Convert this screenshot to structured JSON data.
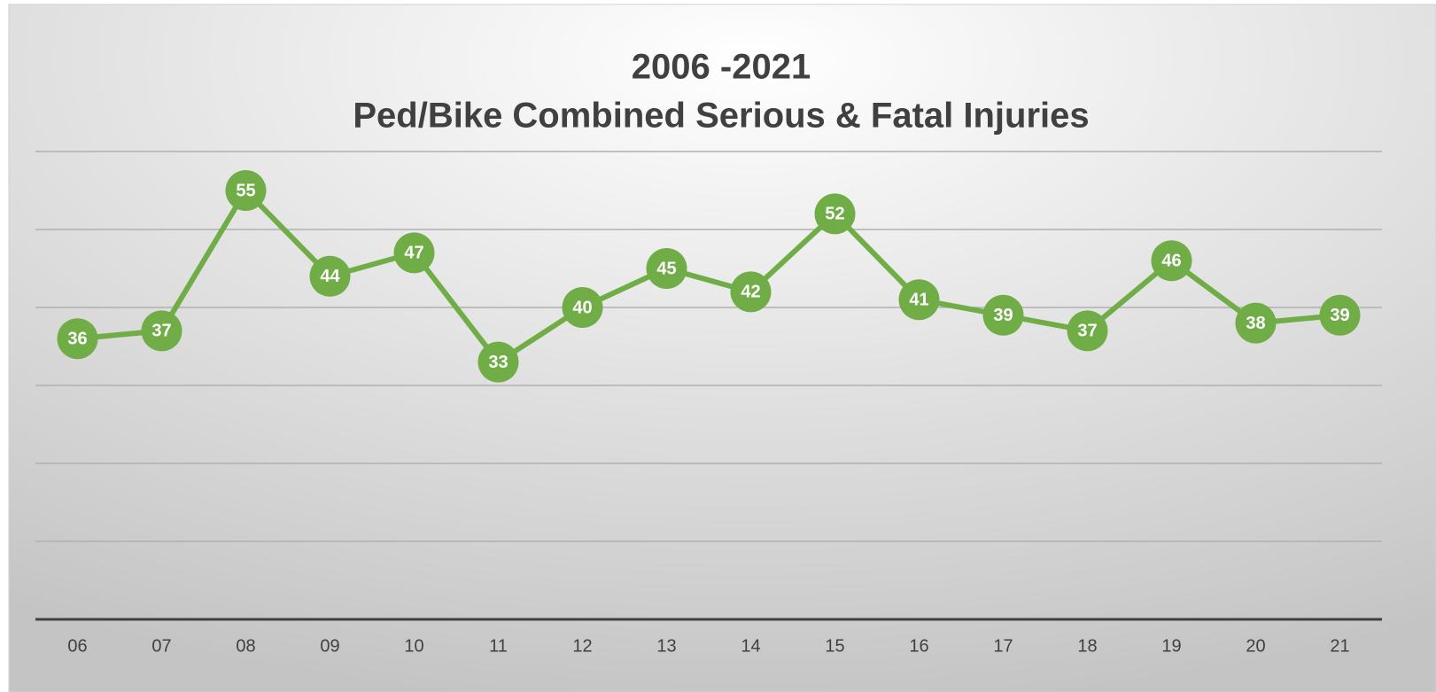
{
  "chart_data": {
    "type": "line",
    "title": "2006 -2021",
    "subtitle": "Ped/Bike Combined Serious & Fatal Injuries",
    "categories": [
      "06",
      "07",
      "08",
      "09",
      "10",
      "11",
      "12",
      "13",
      "14",
      "15",
      "16",
      "17",
      "18",
      "19",
      "20",
      "21"
    ],
    "values": [
      36,
      37,
      55,
      44,
      47,
      33,
      40,
      45,
      42,
      52,
      41,
      39,
      37,
      46,
      38,
      39
    ],
    "color": "#70ad47",
    "ylim": [
      0,
      60
    ],
    "yticks": [
      0,
      10,
      20,
      30,
      40,
      50,
      60
    ],
    "grid": true
  }
}
